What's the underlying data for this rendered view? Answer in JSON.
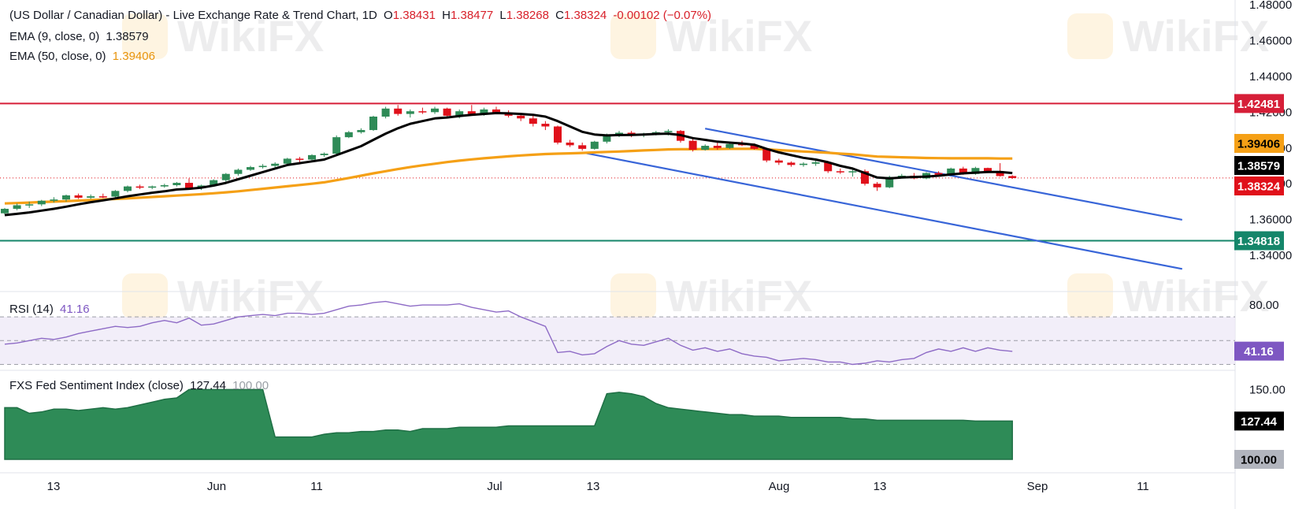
{
  "legend": {
    "title": "(US Dollar / Canadian Dollar) - Live Exchange Rate & Trend Chart, 1D",
    "o_label": "O",
    "o_value": "1.38431",
    "h_label": "H",
    "h_value": "1.38477",
    "l_label": "L",
    "l_value": "1.38268",
    "c_label": "C",
    "c_value": "1.38324",
    "change": "-0.00102 (−0.07%)",
    "ema9_label": "EMA (9, close, 0)",
    "ema9_value": "1.38579",
    "ema50_label": "EMA (50, close, 0)",
    "ema50_value": "1.39406",
    "rsi_label": "RSI (14)",
    "rsi_value": "41.16",
    "fxs_label": "FXS Fed Sentiment Index (close)",
    "fxs_value1": "127.44",
    "fxs_value2": "100.00"
  },
  "watermark": "WikiFX",
  "colors": {
    "up": "#2e8b57",
    "down": "#e0101a",
    "ema9": "#000000",
    "ema50": "#f5a016",
    "resistance": "#d61f38",
    "support": "#15866a",
    "channel": "#3865d8",
    "rsi": "#8e6bc6",
    "fxs": "#2e8b57"
  },
  "chart_data": [
    {
      "type": "candlestick",
      "title": "(US Dollar / Canadian Dollar) - Live Exchange Rate & Trend Chart, 1D",
      "y_ticks": [
        "1.48000",
        "1.46000",
        "1.44000",
        "1.42000",
        "1.40000",
        "1.38000",
        "1.36000",
        "1.34000"
      ],
      "ylim": [
        1.333,
        1.48
      ],
      "x_ticks": [
        "13",
        "Jun",
        "11",
        "Jul",
        "13",
        "Aug",
        "13",
        "Sep",
        "11"
      ],
      "horizontal_levels": [
        {
          "value": 1.42481,
          "label": "1.42481",
          "color": "#d61f38"
        },
        {
          "value": 1.34818,
          "label": "1.34818",
          "color": "#15866a"
        }
      ],
      "price_badges": [
        {
          "label": "1.39406",
          "value": 1.39406,
          "color": "#f5a016"
        },
        {
          "label": "1.38579",
          "value": 1.38579,
          "color": "#000000"
        },
        {
          "label": "1.38324",
          "value": 1.38324,
          "color": "#e0101a"
        }
      ],
      "candles": [
        [
          1.3635,
          1.3665,
          1.3628,
          1.366
        ],
        [
          1.366,
          1.369,
          1.3652,
          1.368
        ],
        [
          1.368,
          1.37,
          1.3665,
          1.3685
        ],
        [
          1.3685,
          1.371,
          1.3675,
          1.3705
        ],
        [
          1.3705,
          1.3725,
          1.3695,
          1.3712
        ],
        [
          1.3712,
          1.374,
          1.37,
          1.3735
        ],
        [
          1.3735,
          1.3745,
          1.3715,
          1.3722
        ],
        [
          1.3722,
          1.374,
          1.3715,
          1.373
        ],
        [
          1.373,
          1.3745,
          1.372,
          1.3728
        ],
        [
          1.3728,
          1.3765,
          1.372,
          1.376
        ],
        [
          1.376,
          1.379,
          1.3752,
          1.3785
        ],
        [
          1.3785,
          1.3795,
          1.377,
          1.3778
        ],
        [
          1.3778,
          1.379,
          1.377,
          1.3785
        ],
        [
          1.3785,
          1.38,
          1.3778,
          1.3792
        ],
        [
          1.3792,
          1.381,
          1.3785,
          1.3805
        ],
        [
          1.3805,
          1.383,
          1.377,
          1.3775
        ],
        [
          1.3775,
          1.3795,
          1.3765,
          1.379
        ],
        [
          1.379,
          1.3825,
          1.3785,
          1.382
        ],
        [
          1.382,
          1.386,
          1.3812,
          1.3855
        ],
        [
          1.3855,
          1.3885,
          1.3845,
          1.3878
        ],
        [
          1.3878,
          1.39,
          1.3872,
          1.3893
        ],
        [
          1.3893,
          1.391,
          1.3885,
          1.39
        ],
        [
          1.39,
          1.392,
          1.389,
          1.3912
        ],
        [
          1.3912,
          1.3945,
          1.3908,
          1.394
        ],
        [
          1.394,
          1.395,
          1.392,
          1.3935
        ],
        [
          1.3935,
          1.3965,
          1.393,
          1.396
        ],
        [
          1.396,
          1.3975,
          1.395,
          1.3968
        ],
        [
          1.3968,
          1.407,
          1.396,
          1.406
        ],
        [
          1.406,
          1.4095,
          1.4055,
          1.4088
        ],
        [
          1.4088,
          1.411,
          1.408,
          1.41
        ],
        [
          1.41,
          1.418,
          1.4095,
          1.4175
        ],
        [
          1.4175,
          1.423,
          1.4165,
          1.422
        ],
        [
          1.422,
          1.424,
          1.418,
          1.419
        ],
        [
          1.419,
          1.4215,
          1.417,
          1.4205
        ],
        [
          1.4205,
          1.4225,
          1.419,
          1.42
        ],
        [
          1.42,
          1.423,
          1.419,
          1.422
        ],
        [
          1.422,
          1.4225,
          1.4175,
          1.418
        ],
        [
          1.418,
          1.4215,
          1.4165,
          1.4205
        ],
        [
          1.4205,
          1.424,
          1.419,
          1.419
        ],
        [
          1.419,
          1.4225,
          1.418,
          1.4215
        ],
        [
          1.4215,
          1.423,
          1.419,
          1.4195
        ],
        [
          1.4195,
          1.421,
          1.417,
          1.418
        ],
        [
          1.418,
          1.4195,
          1.415,
          1.4165
        ],
        [
          1.4165,
          1.418,
          1.412,
          1.4135
        ],
        [
          1.4135,
          1.415,
          1.41,
          1.412
        ],
        [
          1.412,
          1.4125,
          1.402,
          1.403
        ],
        [
          1.403,
          1.4045,
          1.4005,
          1.4015
        ],
        [
          1.4015,
          1.403,
          1.3985,
          1.3995
        ],
        [
          1.3995,
          1.404,
          1.399,
          1.4035
        ],
        [
          1.4035,
          1.408,
          1.4025,
          1.4075
        ],
        [
          1.4075,
          1.4095,
          1.406,
          1.4085
        ],
        [
          1.4085,
          1.4095,
          1.406,
          1.407
        ],
        [
          1.407,
          1.4085,
          1.406,
          1.4078
        ],
        [
          1.4078,
          1.4095,
          1.407,
          1.4088
        ],
        [
          1.4088,
          1.4105,
          1.407,
          1.4095
        ],
        [
          1.4095,
          1.41,
          1.403,
          1.404
        ],
        [
          1.404,
          1.405,
          1.398,
          1.399
        ],
        [
          1.399,
          1.402,
          1.3985,
          1.4012
        ],
        [
          1.4012,
          1.403,
          1.399,
          1.4
        ],
        [
          1.4,
          1.403,
          1.3995,
          1.4022
        ],
        [
          1.4022,
          1.404,
          1.401,
          1.4015
        ],
        [
          1.4015,
          1.4025,
          1.399,
          1.3995
        ],
        [
          1.3995,
          1.4,
          1.392,
          1.393
        ],
        [
          1.393,
          1.394,
          1.3905,
          1.3918
        ],
        [
          1.3918,
          1.3925,
          1.3895,
          1.3905
        ],
        [
          1.3905,
          1.392,
          1.3895,
          1.3912
        ],
        [
          1.3912,
          1.393,
          1.39,
          1.392
        ],
        [
          1.392,
          1.3925,
          1.386,
          1.387
        ],
        [
          1.387,
          1.3885,
          1.3855,
          1.3865
        ],
        [
          1.3865,
          1.388,
          1.384,
          1.387
        ],
        [
          1.387,
          1.388,
          1.379,
          1.38
        ],
        [
          1.38,
          1.381,
          1.376,
          1.378
        ],
        [
          1.378,
          1.3845,
          1.3775,
          1.3838
        ],
        [
          1.3838,
          1.3855,
          1.383,
          1.3845
        ],
        [
          1.3845,
          1.386,
          1.3825,
          1.383
        ],
        [
          1.383,
          1.3865,
          1.3825,
          1.386
        ],
        [
          1.386,
          1.387,
          1.384,
          1.385
        ],
        [
          1.385,
          1.389,
          1.3845,
          1.3885
        ],
        [
          1.3885,
          1.3895,
          1.385,
          1.3855
        ],
        [
          1.3855,
          1.3895,
          1.385,
          1.3888
        ],
        [
          1.3888,
          1.389,
          1.386,
          1.387
        ],
        [
          1.387,
          1.3915,
          1.384,
          1.3843
        ],
        [
          1.3843,
          1.3848,
          1.3827,
          1.3832
        ]
      ],
      "ema9": [
        1.3625,
        1.3632,
        1.364,
        1.365,
        1.366,
        1.3672,
        1.3685,
        1.3697,
        1.3707,
        1.3718,
        1.373,
        1.374,
        1.375,
        1.3758,
        1.3768,
        1.3772,
        1.3778,
        1.379,
        1.3805,
        1.3825,
        1.3845,
        1.3865,
        1.3885,
        1.3905,
        1.3915,
        1.3925,
        1.3935,
        1.396,
        1.3985,
        1.401,
        1.4045,
        1.408,
        1.411,
        1.4135,
        1.415,
        1.4165,
        1.417,
        1.4178,
        1.4185,
        1.419,
        1.4195,
        1.4193,
        1.419,
        1.4185,
        1.4175,
        1.415,
        1.412,
        1.409,
        1.4075,
        1.407,
        1.4072,
        1.4073,
        1.4075,
        1.4078,
        1.408,
        1.4072,
        1.4055,
        1.4045,
        1.4035,
        1.403,
        1.4025,
        1.4018,
        1.3995,
        1.3975,
        1.396,
        1.3945,
        1.3935,
        1.392,
        1.39,
        1.3885,
        1.386,
        1.3835,
        1.383,
        1.3835,
        1.3838,
        1.384,
        1.3845,
        1.3852,
        1.3858,
        1.3862,
        1.3866,
        1.3866,
        1.386
      ],
      "ema50": [
        1.369,
        1.3692,
        1.3695,
        1.3698,
        1.37,
        1.3703,
        1.3706,
        1.3709,
        1.3712,
        1.3715,
        1.3718,
        1.3722,
        1.3726,
        1.373,
        1.3734,
        1.3738,
        1.3742,
        1.3747,
        1.3752,
        1.3758,
        1.3765,
        1.3772,
        1.3779,
        1.3786,
        1.3793,
        1.38,
        1.3808,
        1.382,
        1.3832,
        1.3845,
        1.3858,
        1.387,
        1.3882,
        1.3893,
        1.3903,
        1.3912,
        1.3921,
        1.3929,
        1.3936,
        1.3942,
        1.3948,
        1.3953,
        1.3958,
        1.3962,
        1.3966,
        1.3968,
        1.397,
        1.3972,
        1.3975,
        1.3978,
        1.398,
        1.3983,
        1.3986,
        1.3989,
        1.3992,
        1.3993,
        1.3993,
        1.3994,
        1.3994,
        1.3995,
        1.3995,
        1.3995,
        1.3992,
        1.3988,
        1.3984,
        1.398,
        1.3977,
        1.3973,
        1.3968,
        1.3964,
        1.3958,
        1.3952,
        1.395,
        1.3948,
        1.3946,
        1.3944,
        1.3943,
        1.3942,
        1.3942,
        1.3942,
        1.3942,
        1.3941,
        1.3941
      ],
      "channel_lines": [
        {
          "from": [
            47,
            1.3975
          ],
          "to": [
            83,
            1.3495
          ]
        },
        {
          "from": [
            57,
            1.4108
          ],
          "to": [
            83,
            1.3767
          ]
        }
      ]
    },
    {
      "type": "line",
      "name": "RSI (14)",
      "y_ticks": [
        "80.00"
      ],
      "ylim": [
        25,
        90
      ],
      "bands": [
        70,
        50,
        30
      ],
      "badge": {
        "label": "41.16",
        "value": 41.16
      },
      "values": [
        47,
        48,
        50,
        52,
        51,
        53,
        56,
        58,
        60,
        62,
        61,
        62,
        65,
        67,
        65,
        69,
        63,
        64,
        67,
        70,
        71,
        72,
        71,
        73,
        73,
        72,
        73,
        76,
        79,
        80,
        82,
        83,
        81,
        79,
        80,
        80,
        80,
        81,
        78,
        76,
        74,
        75,
        70,
        66,
        62,
        40,
        41,
        38,
        39,
        45,
        50,
        47,
        46,
        49,
        52,
        46,
        42,
        44,
        41,
        43,
        39,
        37,
        36,
        33,
        34,
        35,
        34,
        32,
        32,
        30,
        31,
        33,
        32,
        34,
        35,
        40,
        43,
        41,
        44,
        41,
        44,
        42,
        41
      ]
    },
    {
      "type": "area",
      "name": "FXS Fed Sentiment Index (close)",
      "y_ticks": [
        "150.00"
      ],
      "ylim": [
        100,
        157
      ],
      "badges": [
        {
          "label": "127.44",
          "value": 127.44
        },
        {
          "label": "100.00",
          "value": 100.0
        }
      ],
      "values": [
        137,
        137,
        133,
        134,
        136,
        136,
        135,
        136,
        137,
        136,
        137,
        139,
        141,
        143,
        144,
        150,
        150,
        150,
        150,
        150,
        150,
        150,
        116,
        116,
        116,
        116,
        118,
        119,
        119,
        120,
        120,
        121,
        121,
        120,
        122,
        122,
        122,
        123,
        123,
        123,
        123,
        124,
        124,
        124,
        124,
        124,
        124,
        124,
        124,
        147,
        148,
        147,
        145,
        140,
        137,
        136,
        135,
        134,
        133,
        132,
        132,
        131,
        131,
        131,
        130,
        130,
        130,
        130,
        130,
        129,
        129,
        128,
        128,
        128,
        128,
        128,
        128,
        128,
        128,
        127.44,
        127.44,
        127.44,
        127.44
      ]
    }
  ]
}
